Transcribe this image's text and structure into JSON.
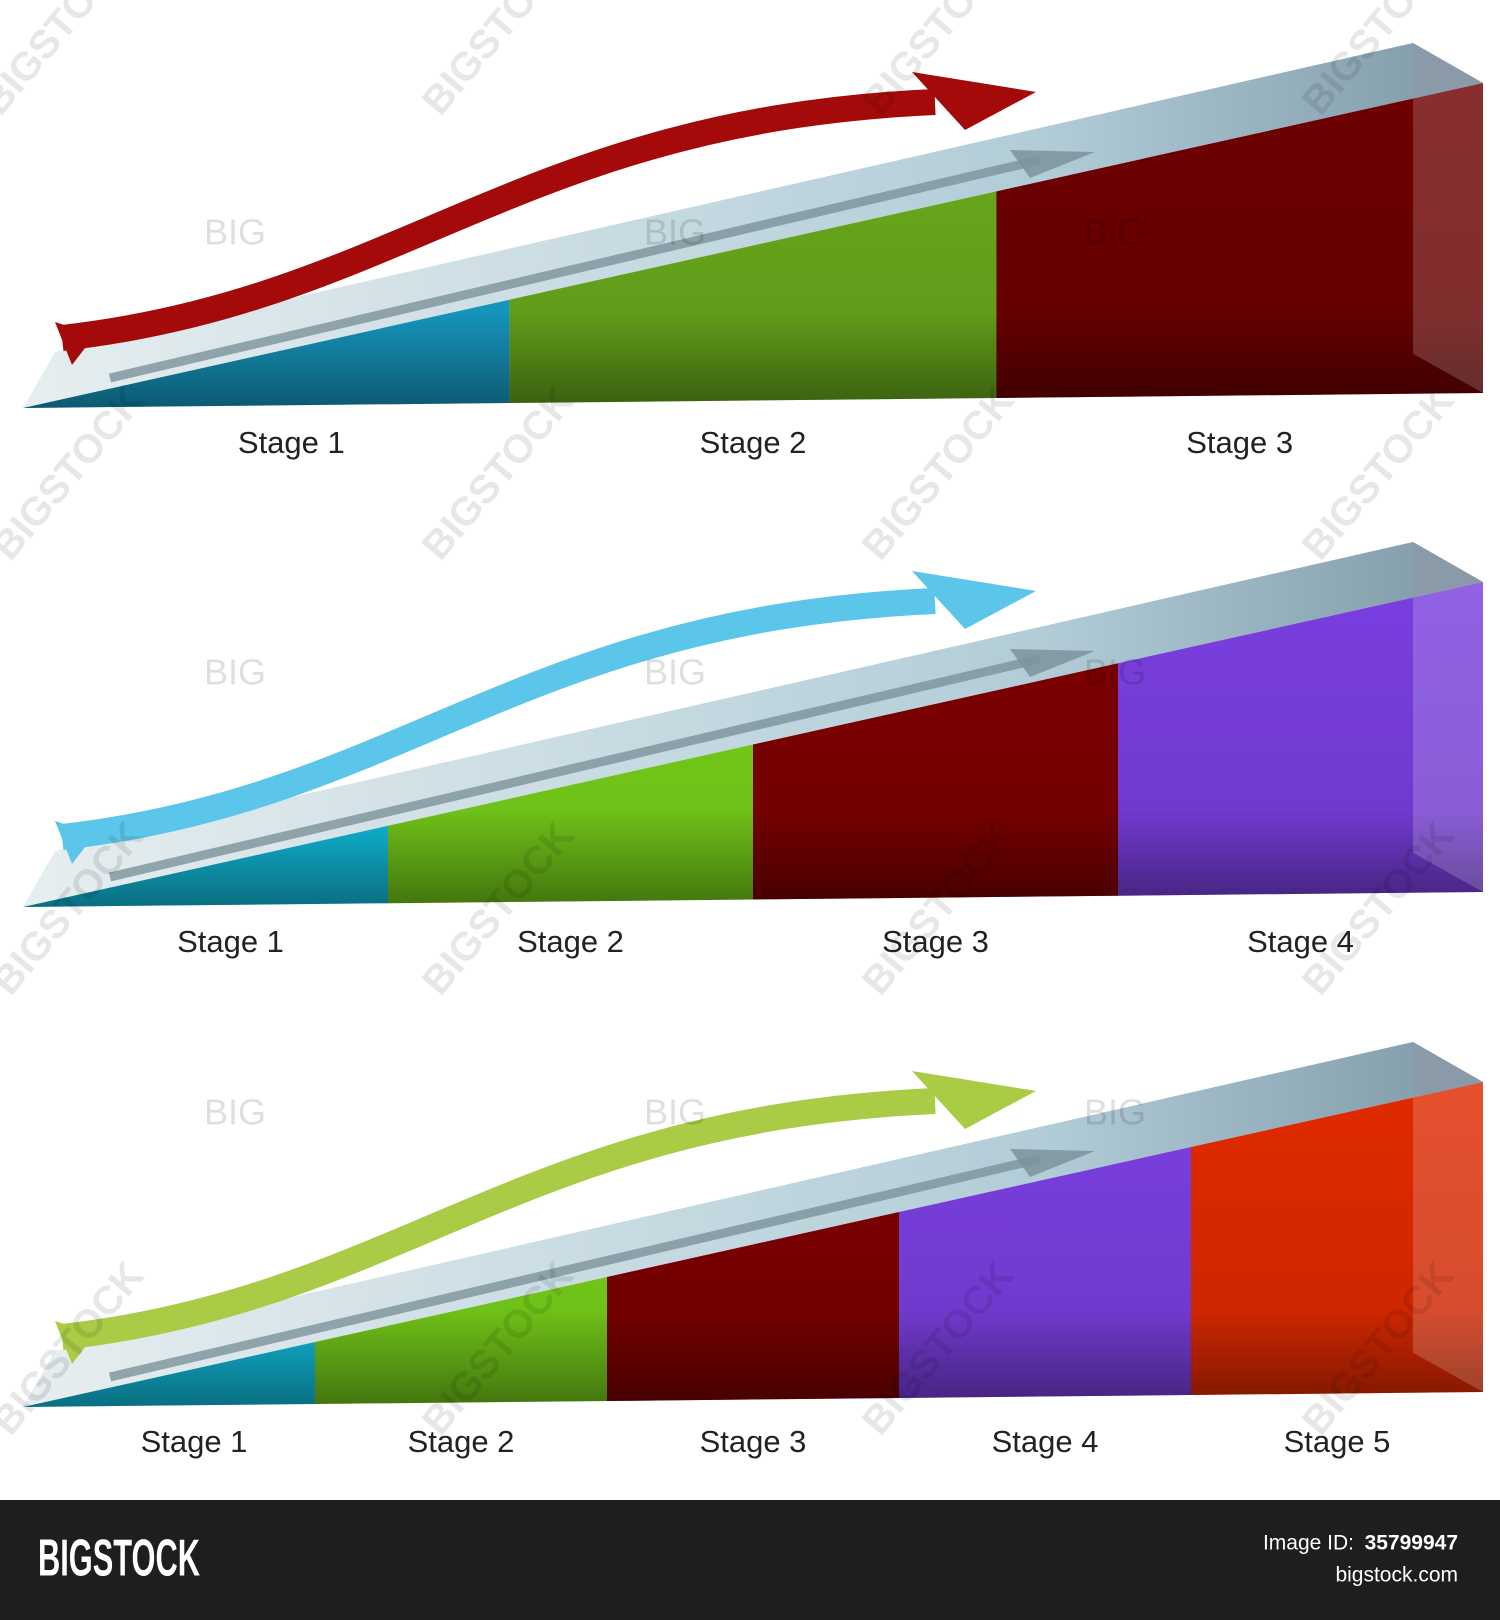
{
  "diagrams": [
    {
      "arrow_color": "#a50a0a",
      "stages": [
        {
          "label": "Stage 1",
          "color": "#17a2cc"
        },
        {
          "label": "Stage 2",
          "color": "#6aab1c"
        },
        {
          "label": "Stage 3",
          "color": "#6e0000"
        }
      ]
    },
    {
      "arrow_color": "#5bc5ea",
      "stages": [
        {
          "label": "Stage 1",
          "color": "#12c8ea"
        },
        {
          "label": "Stage 2",
          "color": "#78d21a"
        },
        {
          "label": "Stage 3",
          "color": "#7e0000"
        },
        {
          "label": "Stage 4",
          "color": "#7a3fe0"
        }
      ]
    },
    {
      "arrow_color": "#a9cb45",
      "stages": [
        {
          "label": "Stage 1",
          "color": "#12c8ea"
        },
        {
          "label": "Stage 2",
          "color": "#78d21a"
        },
        {
          "label": "Stage 3",
          "color": "#7e0000"
        },
        {
          "label": "Stage 4",
          "color": "#7a3fe0"
        },
        {
          "label": "Stage 5",
          "color": "#e02a00"
        }
      ]
    }
  ],
  "watermark": "BIGSTOCK",
  "watermark_short": "BIG",
  "footer": {
    "brand": "BIGSTOCK",
    "id_label": "Image ID:",
    "id": "35799947",
    "site": "bigstock.com"
  }
}
